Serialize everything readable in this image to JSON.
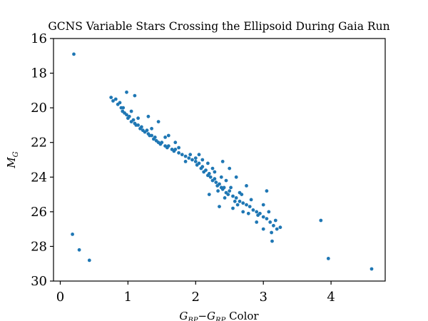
{
  "chart_data": {
    "type": "scatter",
    "title": "GCNS Variable Stars Crossing the Ellipsoid During Gaia Run",
    "xlabel_parts": {
      "main": "G",
      "sub1": "BP",
      "minus": "−",
      "sub2": "RP",
      "tail": " Color"
    },
    "ylabel_parts": {
      "main": "M",
      "sub": "G"
    },
    "xlim": [
      -0.1,
      4.8
    ],
    "ylim": [
      30,
      16
    ],
    "y_inverted": true,
    "xticks": [
      0,
      1,
      2,
      3,
      4
    ],
    "yticks": [
      16,
      18,
      20,
      22,
      24,
      26,
      28,
      30
    ],
    "grid": false,
    "legend": "none",
    "marker_color": "#1f77b4",
    "points": [
      [
        0.2,
        16.9
      ],
      [
        0.18,
        27.3
      ],
      [
        0.28,
        28.2
      ],
      [
        0.43,
        28.8
      ],
      [
        3.85,
        26.5
      ],
      [
        3.96,
        28.7
      ],
      [
        4.6,
        29.3
      ],
      [
        0.75,
        19.4
      ],
      [
        0.78,
        19.6
      ],
      [
        0.82,
        19.5
      ],
      [
        0.85,
        19.8
      ],
      [
        0.88,
        19.7
      ],
      [
        0.9,
        20.0
      ],
      [
        0.92,
        20.2
      ],
      [
        0.95,
        20.3
      ],
      [
        0.98,
        20.4
      ],
      [
        1.0,
        20.6
      ],
      [
        1.02,
        20.5
      ],
      [
        1.05,
        20.8
      ],
      [
        1.08,
        20.7
      ],
      [
        1.1,
        20.9
      ],
      [
        1.12,
        21.0
      ],
      [
        1.15,
        21.0
      ],
      [
        1.18,
        21.2
      ],
      [
        1.2,
        21.1
      ],
      [
        1.22,
        21.3
      ],
      [
        1.25,
        21.4
      ],
      [
        1.28,
        21.3
      ],
      [
        1.3,
        21.5
      ],
      [
        1.32,
        21.6
      ],
      [
        1.35,
        21.6
      ],
      [
        1.38,
        21.8
      ],
      [
        1.4,
        21.7
      ],
      [
        1.42,
        21.9
      ],
      [
        1.45,
        22.0
      ],
      [
        1.48,
        22.1
      ],
      [
        1.5,
        22.0
      ],
      [
        1.55,
        22.2
      ],
      [
        1.58,
        22.3
      ],
      [
        1.6,
        22.2
      ],
      [
        1.65,
        22.4
      ],
      [
        1.68,
        22.5
      ],
      [
        1.7,
        22.4
      ],
      [
        1.75,
        22.6
      ],
      [
        1.8,
        22.7
      ],
      [
        1.85,
        22.8
      ],
      [
        1.9,
        22.9
      ],
      [
        1.95,
        23.0
      ],
      [
        2.0,
        23.1
      ],
      [
        2.02,
        23.3
      ],
      [
        2.05,
        23.2
      ],
      [
        2.08,
        23.5
      ],
      [
        2.1,
        23.4
      ],
      [
        2.12,
        23.7
      ],
      [
        2.15,
        23.6
      ],
      [
        2.18,
        23.9
      ],
      [
        2.2,
        23.8
      ],
      [
        2.22,
        24.0
      ],
      [
        2.25,
        24.2
      ],
      [
        2.28,
        24.1
      ],
      [
        2.3,
        24.3
      ],
      [
        2.32,
        24.5
      ],
      [
        2.35,
        24.4
      ],
      [
        2.38,
        24.6
      ],
      [
        2.4,
        24.7
      ],
      [
        2.42,
        24.6
      ],
      [
        2.45,
        24.9
      ],
      [
        2.48,
        25.0
      ],
      [
        2.5,
        24.8
      ],
      [
        2.55,
        25.1
      ],
      [
        2.6,
        25.2
      ],
      [
        2.65,
        25.4
      ],
      [
        2.7,
        25.5
      ],
      [
        2.75,
        25.6
      ],
      [
        2.8,
        25.7
      ],
      [
        2.85,
        25.9
      ],
      [
        2.9,
        26.0
      ],
      [
        2.95,
        26.1
      ],
      [
        3.0,
        26.3
      ],
      [
        3.05,
        26.4
      ],
      [
        3.1,
        26.6
      ],
      [
        3.15,
        26.8
      ],
      [
        3.2,
        27.0
      ],
      [
        3.25,
        26.9
      ],
      [
        3.12,
        27.2
      ],
      [
        3.13,
        27.7
      ],
      [
        3.05,
        24.8
      ],
      [
        0.98,
        19.1
      ],
      [
        1.1,
        19.3
      ],
      [
        1.3,
        20.5
      ],
      [
        1.45,
        20.8
      ],
      [
        1.6,
        21.6
      ],
      [
        1.7,
        22.0
      ],
      [
        2.4,
        23.1
      ],
      [
        2.5,
        23.5
      ],
      [
        2.6,
        24.0
      ],
      [
        2.75,
        24.5
      ],
      [
        2.2,
        25.0
      ],
      [
        2.35,
        25.7
      ],
      [
        2.55,
        25.8
      ],
      [
        2.7,
        26.0
      ],
      [
        2.9,
        26.6
      ],
      [
        3.0,
        27.0
      ],
      [
        2.92,
        26.2
      ],
      [
        2.65,
        24.9
      ],
      [
        2.45,
        24.2
      ],
      [
        2.25,
        23.5
      ],
      [
        2.05,
        22.7
      ],
      [
        1.85,
        23.1
      ],
      [
        1.75,
        22.3
      ],
      [
        1.55,
        21.7
      ],
      [
        1.35,
        21.2
      ],
      [
        1.15,
        20.6
      ],
      [
        1.05,
        20.2
      ],
      [
        0.93,
        20.0
      ],
      [
        3.0,
        25.6
      ],
      [
        2.82,
        25.3
      ],
      [
        2.68,
        25.0
      ],
      [
        2.52,
        24.6
      ],
      [
        2.38,
        24.0
      ],
      [
        2.28,
        23.7
      ],
      [
        2.18,
        23.2
      ],
      [
        2.1,
        23.0
      ],
      [
        2.0,
        22.9
      ],
      [
        1.92,
        22.7
      ],
      [
        2.78,
        26.1
      ],
      [
        2.62,
        25.6
      ],
      [
        3.18,
        26.5
      ],
      [
        3.08,
        26.0
      ],
      [
        2.33,
        24.8
      ],
      [
        2.43,
        25.2
      ],
      [
        2.58,
        25.4
      ]
    ]
  }
}
